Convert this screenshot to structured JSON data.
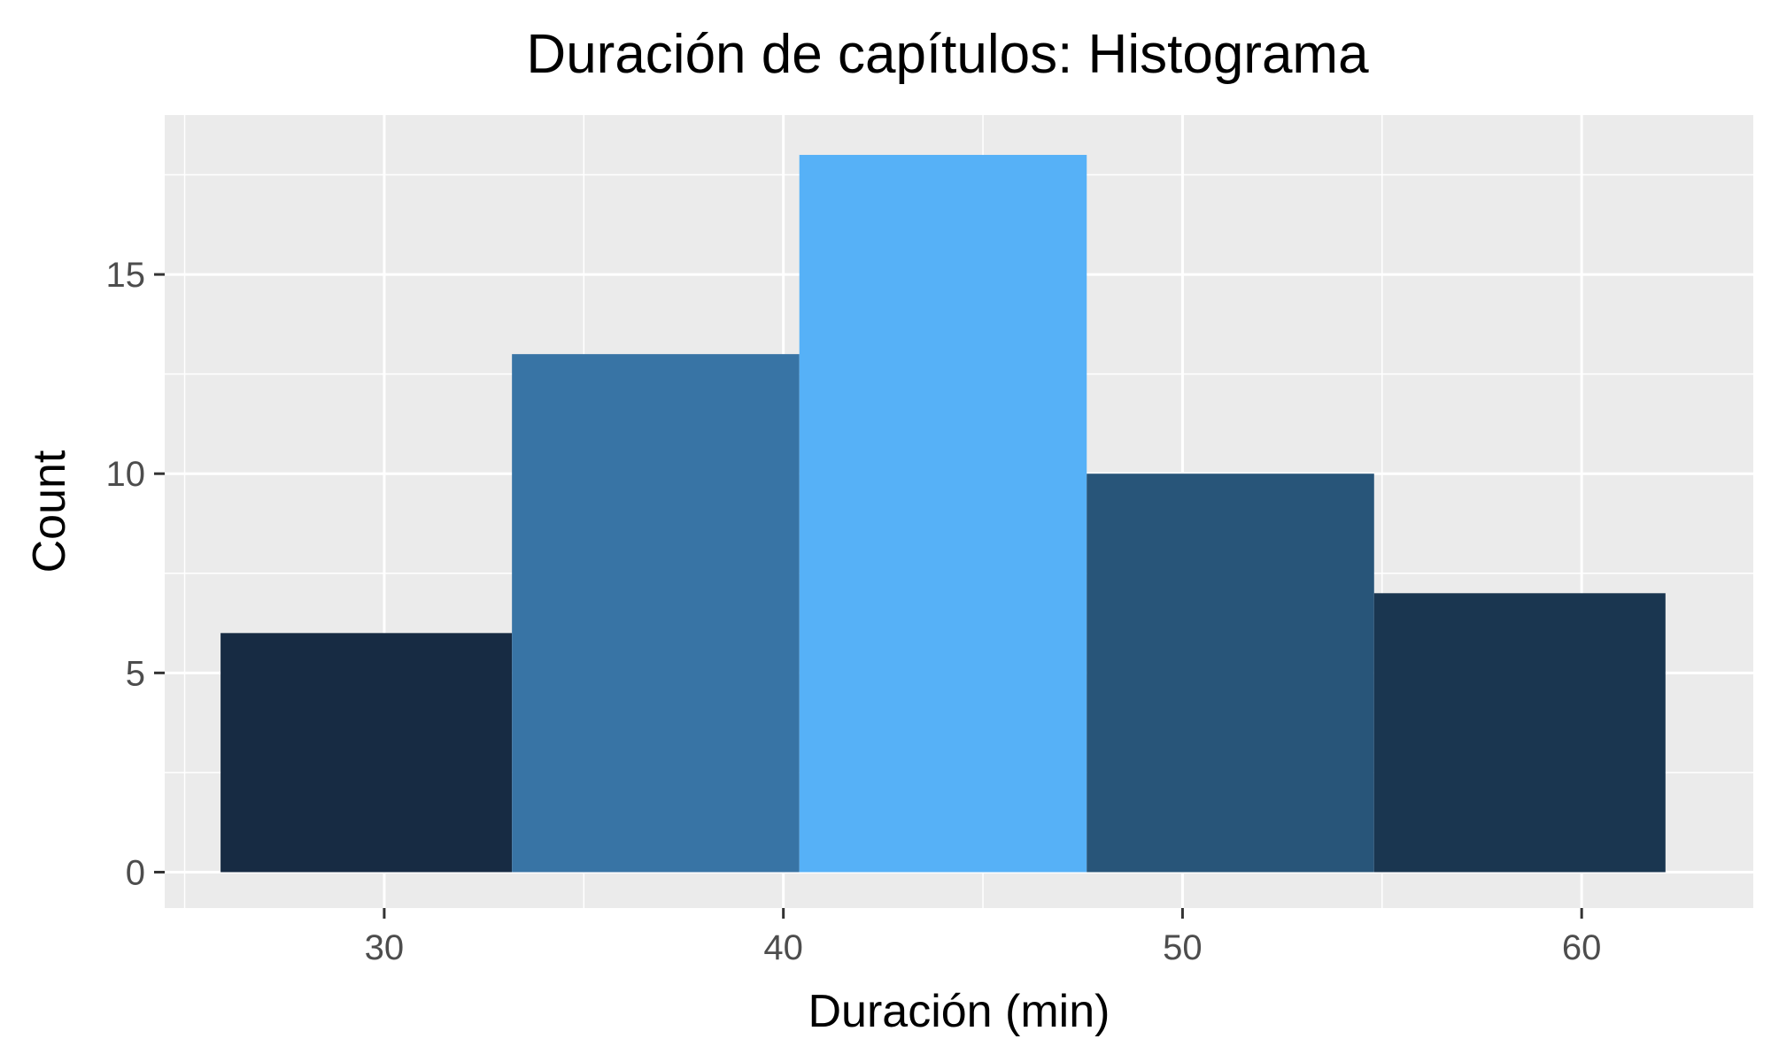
{
  "chart_data": {
    "type": "bar",
    "subtype": "histogram",
    "title": "Duración de capítulos: Histograma",
    "xlabel": "Duración (min)",
    "ylabel": "Count",
    "xlim": [
      24.5,
      64.3
    ],
    "ylim": [
      -0.9,
      19.0
    ],
    "x_ticks": [
      30,
      40,
      50,
      60
    ],
    "y_ticks": [
      0,
      5,
      10,
      15
    ],
    "grid": true,
    "legend": "none",
    "bins": [
      {
        "x_start": 25.9,
        "x_end": 33.2,
        "count": 6,
        "color": "#172b43"
      },
      {
        "x_start": 33.2,
        "x_end": 40.4,
        "count": 13,
        "color": "#3874a5"
      },
      {
        "x_start": 40.4,
        "x_end": 47.6,
        "count": 18,
        "color": "#56b1f7"
      },
      {
        "x_start": 47.6,
        "x_end": 54.8,
        "count": 10,
        "color": "#285579"
      },
      {
        "x_start": 54.8,
        "x_end": 62.1,
        "count": 7,
        "color": "#1a3650"
      }
    ],
    "panel_background": "#ebebeb",
    "grid_color": "#ffffff"
  }
}
